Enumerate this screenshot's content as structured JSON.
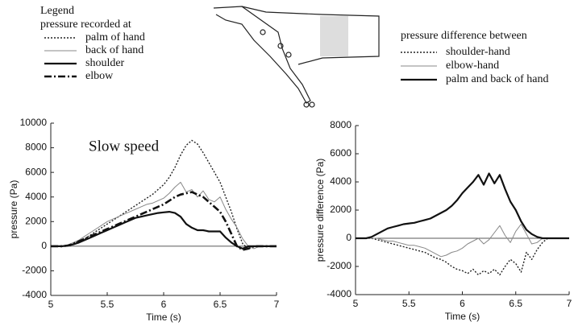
{
  "chart_data": [
    {
      "type": "line",
      "legend_title": "Legend",
      "legend_subtitle": "pressure recorded at",
      "annotation": "Slow speed",
      "xlabel": "Time (s)",
      "ylabel": "pressure  (Pa)",
      "xlim": [
        5,
        7
      ],
      "xticks": [
        5,
        5.5,
        6,
        6.5,
        7
      ],
      "ylim": [
        -4000,
        10000
      ],
      "yticks": [
        -4000,
        -2000,
        0,
        2000,
        4000,
        6000,
        8000,
        10000
      ],
      "x": [
        5,
        5.05,
        5.1,
        5.15,
        5.2,
        5.25,
        5.3,
        5.35,
        5.4,
        5.45,
        5.5,
        5.55,
        5.6,
        5.65,
        5.7,
        5.75,
        5.8,
        5.85,
        5.9,
        5.95,
        6,
        6.05,
        6.1,
        6.15,
        6.2,
        6.25,
        6.3,
        6.35,
        6.4,
        6.45,
        6.5,
        6.55,
        6.6,
        6.65,
        6.7,
        6.75,
        6.8,
        6.85,
        6.9,
        6.95,
        7
      ],
      "series": [
        {
          "name": "palm of hand",
          "color": "#222222",
          "style": "dotted",
          "values": [
            0,
            0,
            0,
            50,
            200,
            400,
            600,
            900,
            1200,
            1500,
            1800,
            2100,
            2400,
            2700,
            3000,
            3300,
            3600,
            3900,
            4200,
            4600,
            5000,
            5600,
            6400,
            7400,
            8200,
            8600,
            8300,
            7600,
            6800,
            6000,
            5200,
            4000,
            2800,
            1400,
            200,
            -200,
            0,
            0,
            0,
            0,
            0
          ]
        },
        {
          "name": "back of hand",
          "color": "#888888",
          "style": "thin",
          "values": [
            0,
            0,
            0,
            100,
            300,
            500,
            800,
            1100,
            1400,
            1700,
            2000,
            2200,
            2400,
            2600,
            2800,
            3000,
            3200,
            3400,
            3500,
            3700,
            3900,
            4300,
            4800,
            5200,
            4400,
            4600,
            4000,
            4500,
            3800,
            3600,
            4000,
            3000,
            2200,
            1500,
            600,
            0,
            -200,
            0,
            0,
            0,
            0
          ]
        },
        {
          "name": "shoulder",
          "color": "#111111",
          "style": "thick",
          "values": [
            0,
            0,
            0,
            50,
            150,
            300,
            500,
            700,
            900,
            1100,
            1300,
            1500,
            1700,
            1900,
            2100,
            2300,
            2400,
            2500,
            2600,
            2700,
            2750,
            2800,
            2700,
            2400,
            1800,
            1500,
            1300,
            1300,
            1200,
            1200,
            1200,
            700,
            300,
            0,
            -200,
            0,
            0,
            0,
            0,
            0,
            0
          ]
        },
        {
          "name": "elbow",
          "color": "#111111",
          "style": "dashdot",
          "values": [
            0,
            0,
            0,
            50,
            200,
            400,
            600,
            800,
            1000,
            1200,
            1400,
            1600,
            1800,
            2000,
            2200,
            2400,
            2600,
            2800,
            3000,
            3200,
            3400,
            3700,
            4000,
            4200,
            4300,
            4400,
            4200,
            4000,
            3600,
            3200,
            2800,
            2000,
            1000,
            0,
            -300,
            -200,
            0,
            0,
            0,
            0,
            0
          ]
        }
      ]
    },
    {
      "type": "line",
      "legend_title": "pressure difference between",
      "xlabel": "Time (s)",
      "ylabel": "pressure difference  (Pa)",
      "xlim": [
        5,
        7
      ],
      "xticks": [
        5,
        5.5,
        6,
        6.5,
        7
      ],
      "ylim": [
        -4000,
        8000
      ],
      "yticks": [
        -4000,
        -2000,
        0,
        2000,
        4000,
        6000,
        8000
      ],
      "x": [
        5,
        5.05,
        5.1,
        5.15,
        5.2,
        5.25,
        5.3,
        5.35,
        5.4,
        5.45,
        5.5,
        5.55,
        5.6,
        5.65,
        5.7,
        5.75,
        5.8,
        5.85,
        5.9,
        5.95,
        6,
        6.05,
        6.1,
        6.15,
        6.2,
        6.25,
        6.3,
        6.35,
        6.4,
        6.45,
        6.5,
        6.55,
        6.6,
        6.65,
        6.7,
        6.75,
        6.8,
        6.85,
        6.9,
        6.95,
        7
      ],
      "series": [
        {
          "name": "shoulder-hand",
          "color": "#222222",
          "style": "dotted",
          "values": [
            0,
            0,
            0,
            0,
            -100,
            -200,
            -300,
            -400,
            -500,
            -600,
            -700,
            -800,
            -900,
            -1000,
            -1200,
            -1400,
            -1500,
            -1700,
            -2000,
            -2200,
            -2300,
            -2500,
            -2200,
            -2600,
            -2300,
            -2500,
            -2200,
            -2600,
            -2000,
            -1500,
            -1800,
            -2400,
            -1000,
            -1500,
            -800,
            -300,
            0,
            0,
            0,
            0,
            0
          ]
        },
        {
          "name": "elbow-hand",
          "color": "#888888",
          "style": "thin",
          "values": [
            0,
            0,
            0,
            0,
            0,
            -100,
            -200,
            -200,
            -300,
            -400,
            -500,
            -500,
            -600,
            -700,
            -900,
            -1100,
            -1300,
            -1200,
            -1000,
            -900,
            -700,
            -400,
            -200,
            0,
            -400,
            -100,
            400,
            900,
            200,
            -300,
            500,
            1000,
            300,
            -400,
            -300,
            0,
            0,
            0,
            0,
            0,
            0
          ]
        },
        {
          "name": "palm and back of hand",
          "color": "#111111",
          "style": "thick",
          "values": [
            0,
            0,
            0,
            100,
            300,
            500,
            700,
            800,
            900,
            1000,
            1050,
            1100,
            1200,
            1300,
            1400,
            1600,
            1800,
            2000,
            2300,
            2700,
            3200,
            3600,
            4000,
            4500,
            3800,
            4600,
            3900,
            4500,
            3500,
            2600,
            2000,
            1200,
            600,
            300,
            100,
            0,
            0,
            0,
            0,
            0,
            0
          ]
        }
      ]
    }
  ]
}
